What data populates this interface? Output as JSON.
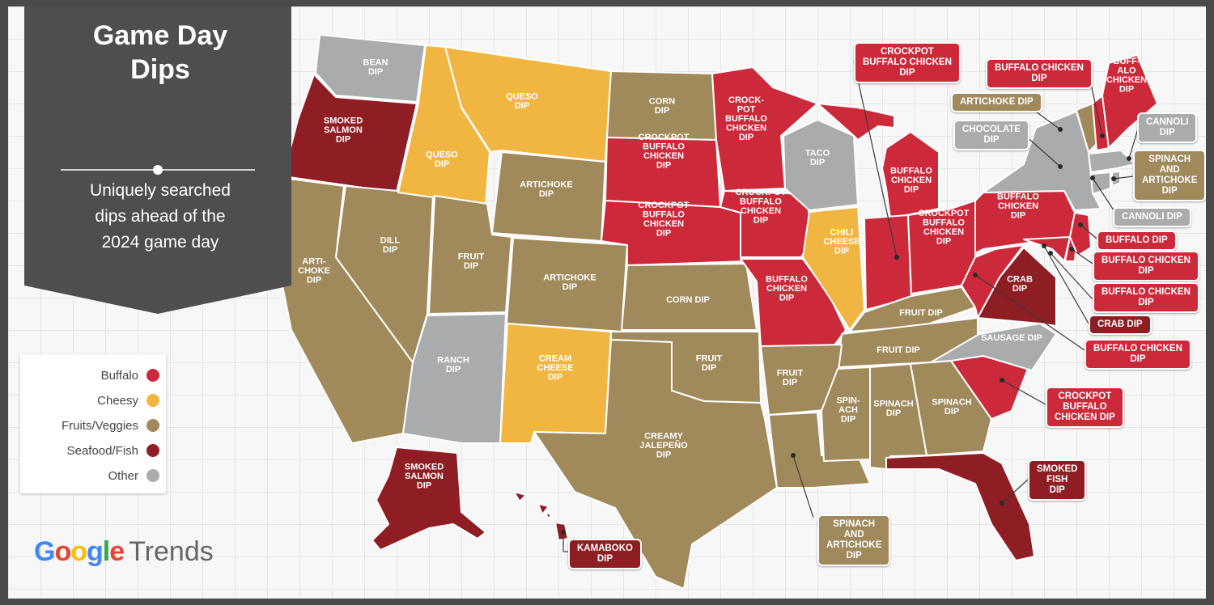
{
  "header": {
    "title_line1": "Game Day",
    "title_line2": "Dips",
    "subtitle_line1": "Uniquely searched",
    "subtitle_line2": "dips ahead of the",
    "subtitle_line3": "2024 game day"
  },
  "legend": [
    {
      "label": "Buffalo",
      "color": "#cc2a3b"
    },
    {
      "label": "Cheesy",
      "color": "#f1b642"
    },
    {
      "label": "Fruits/Veggies",
      "color": "#a08a5c"
    },
    {
      "label": "Seafood/Fish",
      "color": "#8f1d24"
    },
    {
      "label": "Other",
      "color": "#a9abad"
    }
  ],
  "brand": {
    "google": "Google",
    "trends": "Trends"
  },
  "state_labels": [
    {
      "state": "Washington",
      "lines": [
        "BEAN",
        "DIP"
      ]
    },
    {
      "state": "Oregon",
      "lines": [
        "SMOKED",
        "SALMON",
        "DIP"
      ]
    },
    {
      "state": "Idaho",
      "lines": [
        "QUESO",
        "DIP"
      ]
    },
    {
      "state": "Montana",
      "lines": [
        "QUESO",
        "DIP"
      ]
    },
    {
      "state": "Wyoming",
      "lines": [
        "ARTICHOKE",
        "DIP"
      ]
    },
    {
      "state": "North Dakota",
      "lines": [
        "CORN",
        "DIP"
      ]
    },
    {
      "state": "South Dakota",
      "lines": [
        "CROCKPOT",
        "BUFFALO",
        "CHICKEN",
        "DIP"
      ]
    },
    {
      "state": "Nebraska",
      "lines": [
        "CROCKPOT",
        "BUFFALO",
        "CHICKEN",
        "DIP"
      ]
    },
    {
      "state": "Minnesota",
      "lines": [
        "CROCK-",
        "POT",
        "BUFFALO",
        "CHICKEN",
        "DIP"
      ]
    },
    {
      "state": "Iowa",
      "lines": [
        "CROCKPOT",
        "BUFFALO",
        "CHICKEN",
        "DIP"
      ]
    },
    {
      "state": "Wisconsin",
      "lines": [
        "TACO",
        "DIP"
      ]
    },
    {
      "state": "Michigan",
      "lines": [
        "BUFFALO",
        "CHICKEN",
        "DIP"
      ]
    },
    {
      "state": "Illinois",
      "lines": [
        "CHILI",
        "CHEESE",
        "DIP"
      ]
    },
    {
      "state": "Ohio",
      "lines": [
        "CROCKPOT",
        "BUFFALO",
        "CHICKEN",
        "DIP"
      ]
    },
    {
      "state": "Pennsylvania",
      "lines": [
        "BUFFALO",
        "CHICKEN",
        "DIP"
      ]
    },
    {
      "state": "California",
      "lines": [
        "ARTI-",
        "CHOKE",
        "DIP"
      ]
    },
    {
      "state": "Nevada",
      "lines": [
        "DILL",
        "DIP"
      ]
    },
    {
      "state": "Utah",
      "lines": [
        "FRUIT",
        "DIP"
      ]
    },
    {
      "state": "Colorado",
      "lines": [
        "ARTICHOKE",
        "DIP"
      ]
    },
    {
      "state": "Kansas",
      "lines": [
        "CORN DIP"
      ]
    },
    {
      "state": "Missouri",
      "lines": [
        "BUFFALO",
        "CHICKEN",
        "DIP"
      ]
    },
    {
      "state": "Kentucky",
      "lines": [
        "FRUIT DIP"
      ]
    },
    {
      "state": "Virginia",
      "lines": [
        "CRAB",
        "DIP"
      ]
    },
    {
      "state": "Tennessee",
      "lines": [
        "FRUIT DIP"
      ]
    },
    {
      "state": "North Carolina",
      "lines": [
        "SAUSAGE DIP"
      ]
    },
    {
      "state": "Arizona",
      "lines": [
        "RANCH",
        "DIP"
      ]
    },
    {
      "state": "New Mexico",
      "lines": [
        "CREAM",
        "CHEESE",
        "DIP"
      ]
    },
    {
      "state": "Oklahoma",
      "lines": [
        "FRUIT",
        "DIP"
      ]
    },
    {
      "state": "Arkansas",
      "lines": [
        "FRUIT",
        "DIP"
      ]
    },
    {
      "state": "Texas",
      "lines": [
        "CREAMY",
        "JALEPEÑO",
        "DIP"
      ]
    },
    {
      "state": "Mississippi",
      "lines": [
        "SPIN-",
        "ACH",
        "DIP"
      ]
    },
    {
      "state": "Alabama",
      "lines": [
        "SPINACH",
        "DIP"
      ]
    },
    {
      "state": "Georgia",
      "lines": [
        "SPINACH",
        "DIP"
      ]
    },
    {
      "state": "Alaska",
      "lines": [
        "SMOKED",
        "SALMON",
        "DIP"
      ]
    },
    {
      "state": "Maine",
      "lines": [
        "BUFF-",
        "ALO",
        "CHICKEN",
        "DIP"
      ]
    }
  ],
  "callouts": [
    {
      "state": "Indiana",
      "lines": [
        "CROCKPOT",
        "BUFFALO CHICKEN",
        "DIP"
      ]
    },
    {
      "state": "New Hampshire",
      "lines": [
        "BUFFALO CHICKEN",
        "DIP"
      ]
    },
    {
      "state": "Vermont",
      "lines": [
        "ARTICHOKE DIP"
      ]
    },
    {
      "state": "New York",
      "lines": [
        "CHOCOLATE",
        "DIP"
      ]
    },
    {
      "state": "Massachusetts",
      "lines": [
        "CANNOLI",
        "DIP"
      ]
    },
    {
      "state": "Connecticut",
      "lines": [
        "SPINACH",
        "AND",
        "ARTICHOKE",
        "DIP"
      ]
    },
    {
      "state": "Rhode Island",
      "lines": [
        "CANNOLI DIP"
      ]
    },
    {
      "state": "New Jersey",
      "lines": [
        "BUFFALO DIP"
      ]
    },
    {
      "state": "Delaware",
      "lines": [
        "BUFFALO CHICKEN",
        "DIP"
      ]
    },
    {
      "state": "Maryland",
      "lines": [
        "BUFFALO CHICKEN",
        "DIP"
      ]
    },
    {
      "state": "District of Columbia",
      "lines": [
        "CRAB DIP"
      ]
    },
    {
      "state": "West Virginia",
      "lines": [
        "BUFFALO CHICKEN",
        "DIP"
      ]
    },
    {
      "state": "South Carolina",
      "lines": [
        "CROCKPOT",
        "BUFFALO",
        "CHICKEN DIP"
      ]
    },
    {
      "state": "Florida",
      "lines": [
        "SMOKED",
        "FISH",
        "DIP"
      ]
    },
    {
      "state": "Louisiana",
      "lines": [
        "SPINACH",
        "AND",
        "ARTICHOKE",
        "DIP"
      ]
    },
    {
      "state": "Hawaii",
      "lines": [
        "KAMABOKO",
        "DIP"
      ]
    }
  ]
}
